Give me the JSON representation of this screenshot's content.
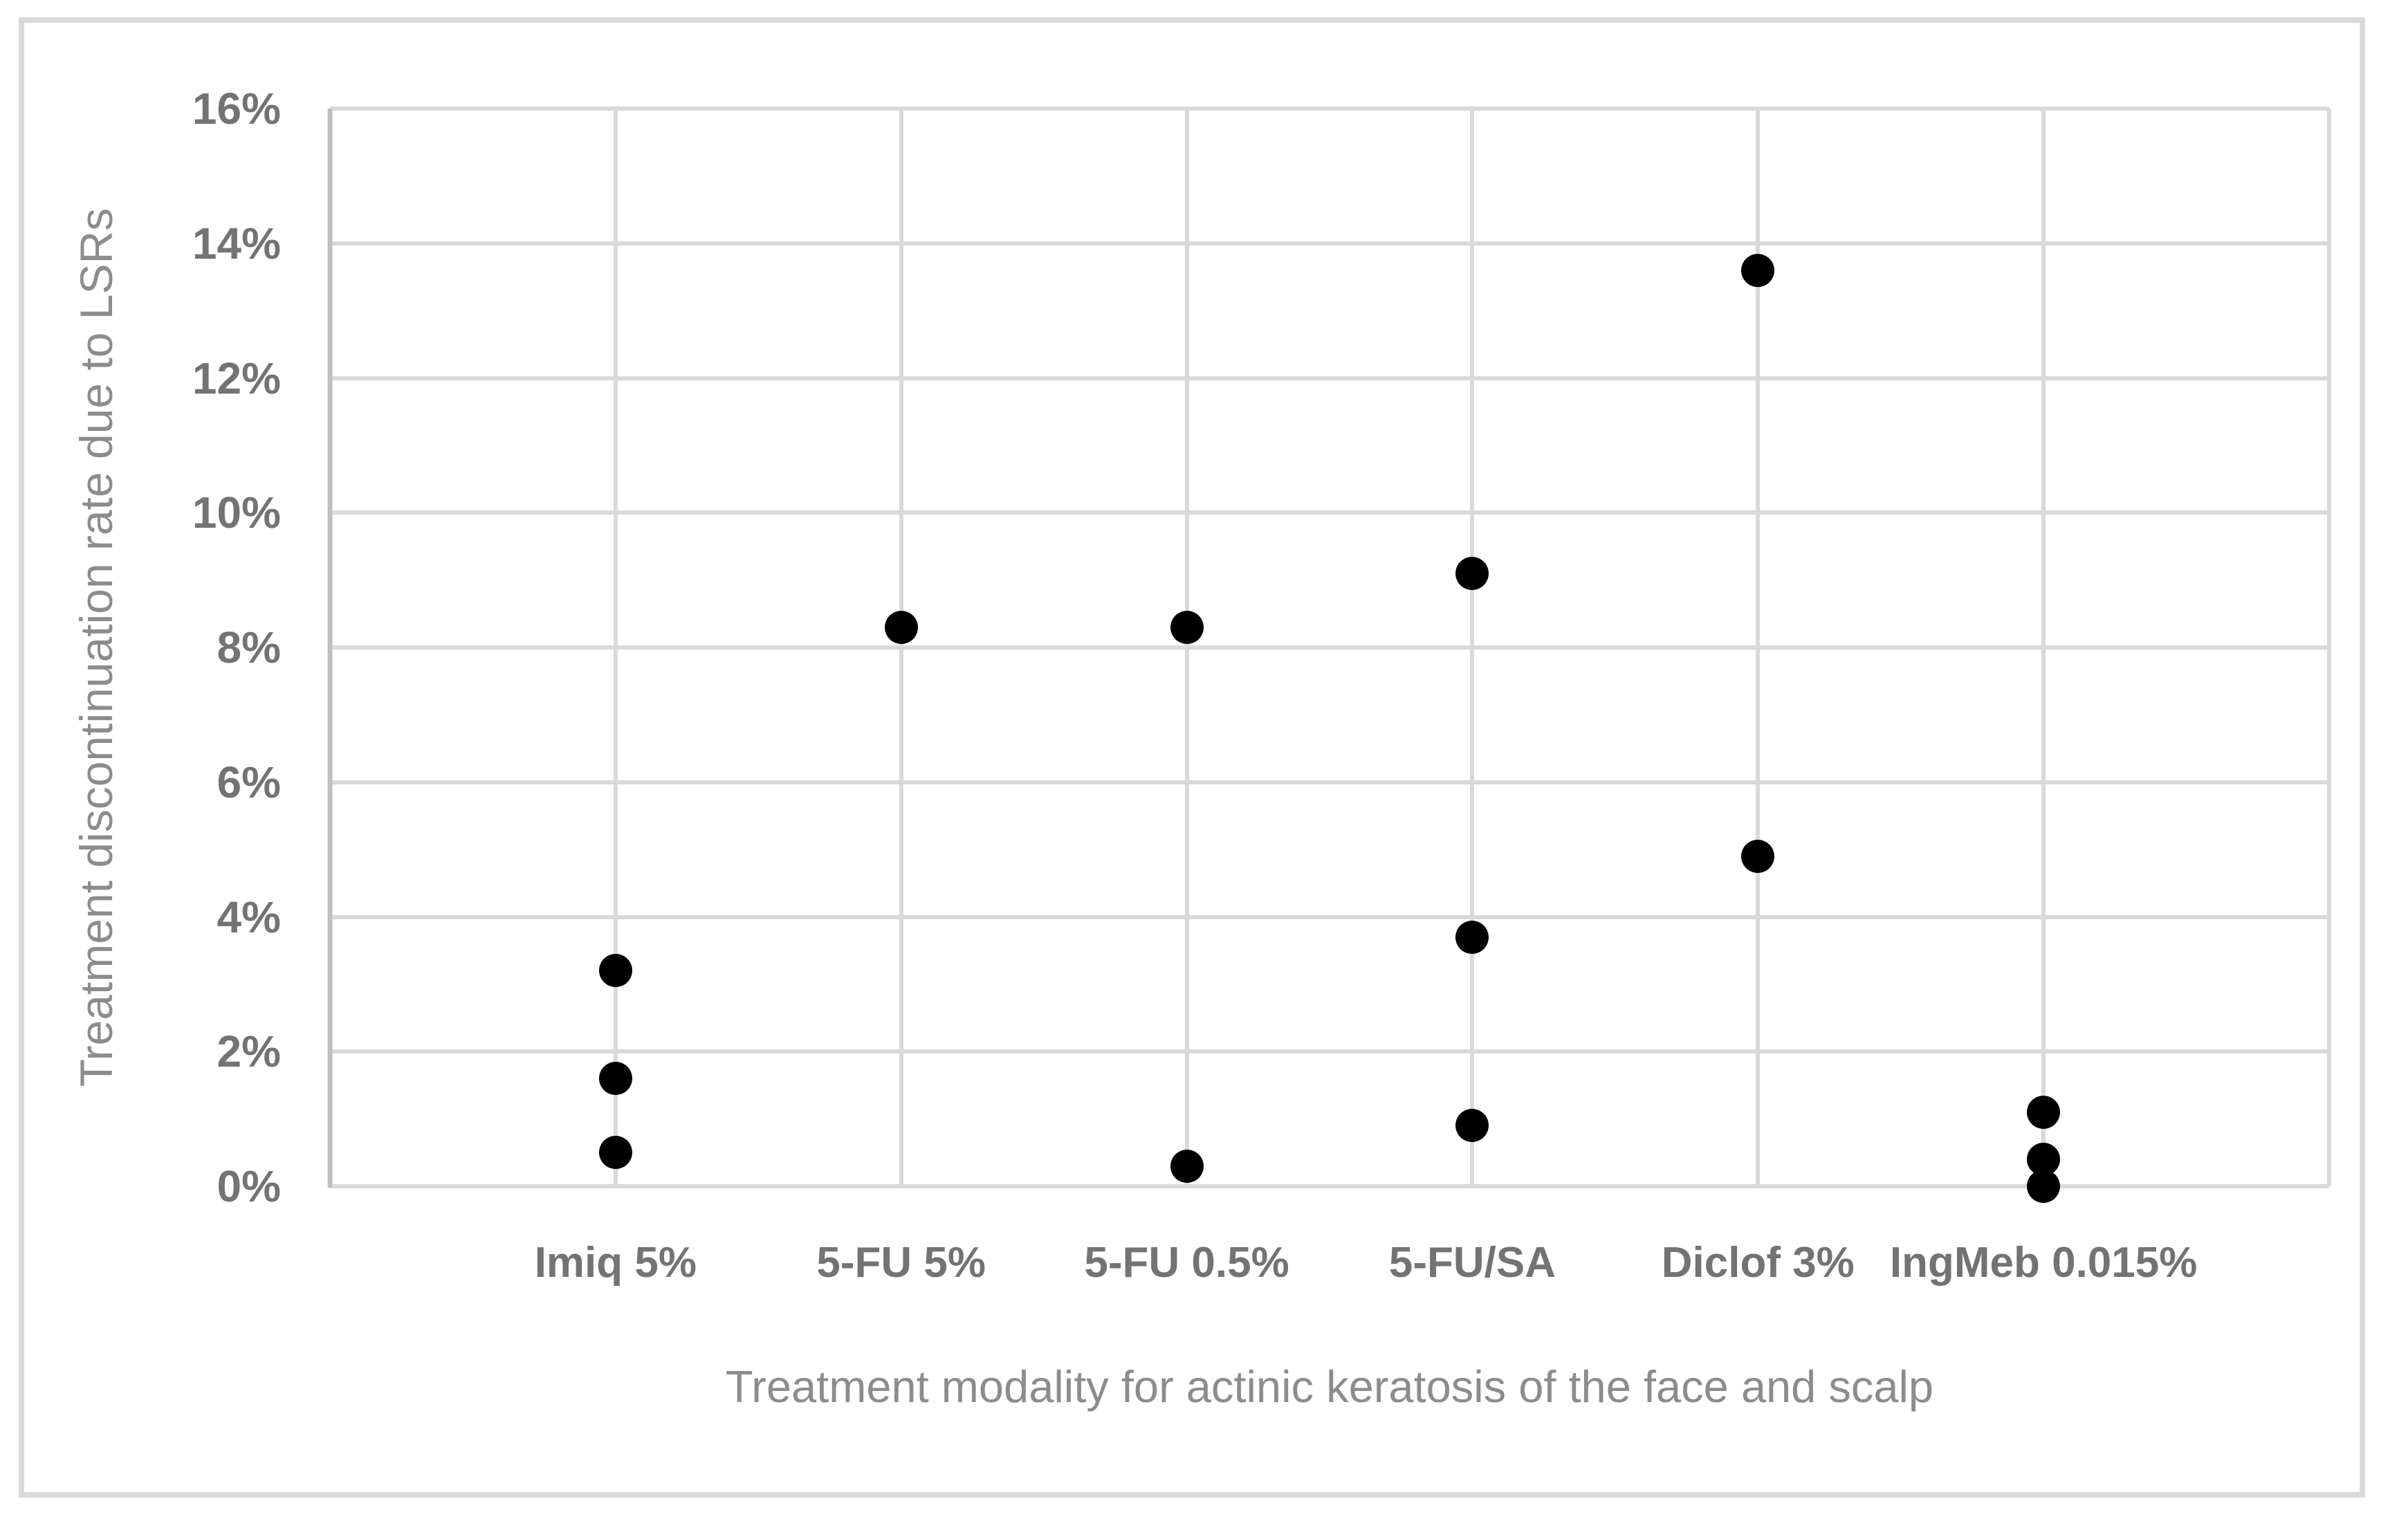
{
  "chart_data": {
    "type": "scatter",
    "title": "",
    "xlabel": "Treatment modality for actinic keratosis of the face and scalp",
    "ylabel": "Treatment discontinuation rate due to LSRs",
    "categories": [
      "Imiq 5%",
      "5-FU 5%",
      "5-FU 0.5%",
      "5-FU/SA",
      "Diclof 3%",
      "IngMeb 0.015%"
    ],
    "series": [
      {
        "name": "Treatment discontinuation rate due to LSRs",
        "values_by_category_pct": [
          [
            3.2,
            1.6,
            0.5
          ],
          [
            8.3
          ],
          [
            8.3,
            0.3
          ],
          [
            9.1,
            3.7,
            0.9
          ],
          [
            13.6,
            4.9
          ],
          [
            1.1,
            0.4,
            0.0
          ]
        ]
      }
    ],
    "y_axis": {
      "min": 0,
      "max": 16,
      "step": 2,
      "tick_labels": [
        "0%",
        "2%",
        "4%",
        "6%",
        "8%",
        "10%",
        "12%",
        "14%",
        "16%"
      ]
    },
    "x_axis": {
      "category_slots": 7,
      "gridlines_at_categories": true
    },
    "grid": true,
    "legend": false,
    "marker": {
      "shape": "circle",
      "color": "#000000"
    },
    "colors": {
      "gridline": "#d9d9d9",
      "axis_line": "#bfbfbf",
      "tick_label": "#737373",
      "axis_title": "#8c8c8c",
      "frame_border": "#d9d9d9",
      "background": "#ffffff"
    }
  }
}
